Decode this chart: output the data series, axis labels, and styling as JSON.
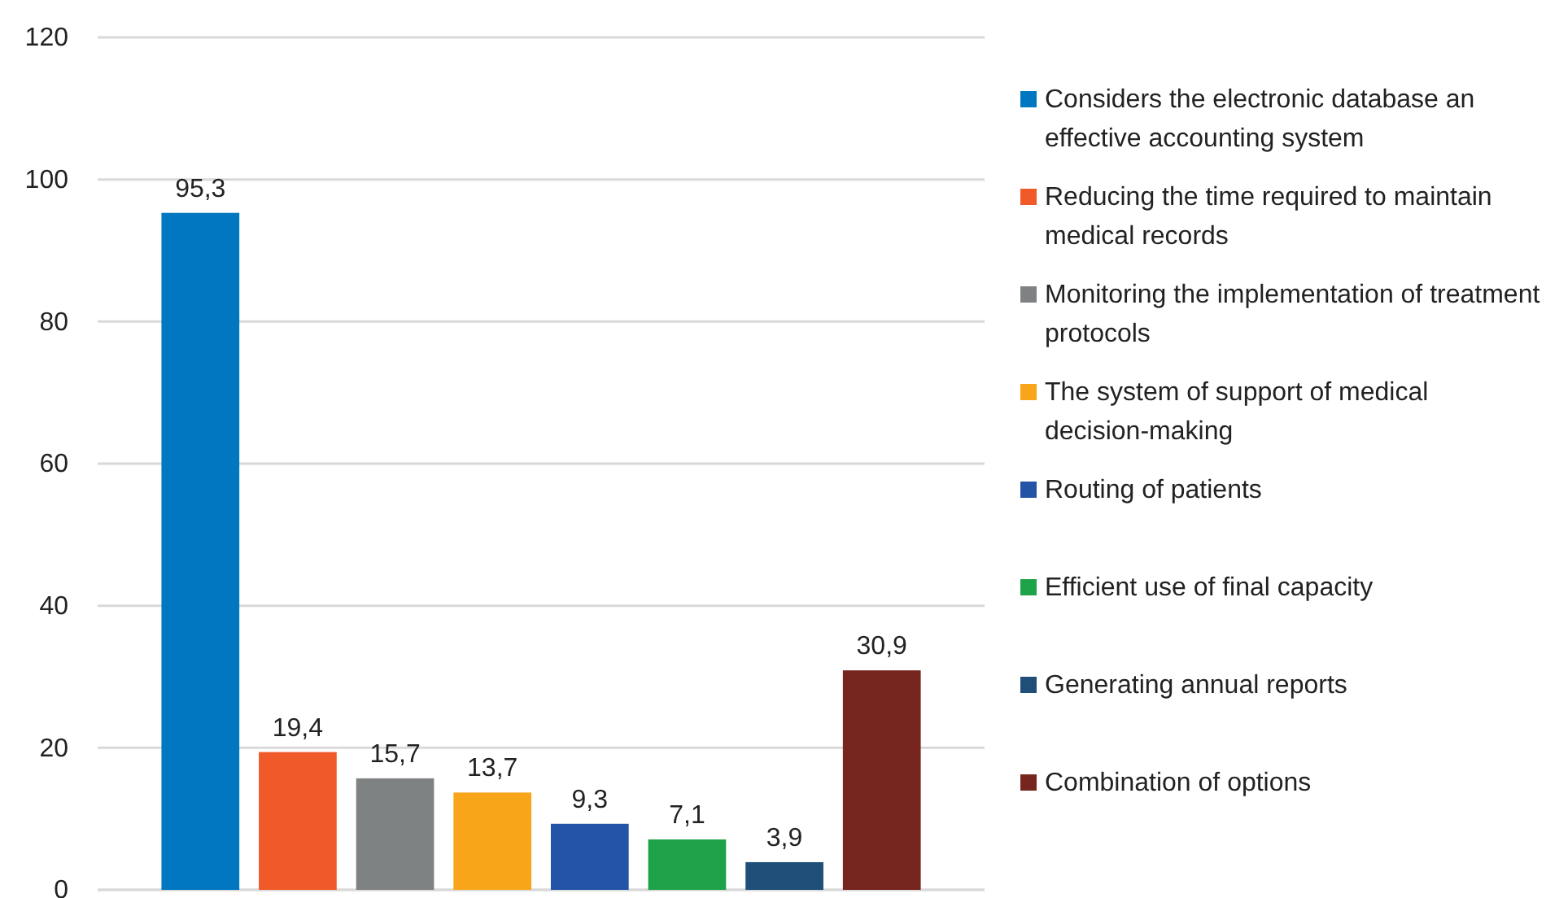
{
  "chart_data": {
    "type": "bar",
    "categories": [
      null
    ],
    "ylim": [
      0,
      120
    ],
    "yticks": [
      0,
      20,
      40,
      60,
      80,
      100,
      120
    ],
    "grid": "y",
    "legend": "right",
    "series": [
      {
        "name": "Considers the electronic database an effective accounting system",
        "color": "#0077c0",
        "values": [
          95.3
        ],
        "value_labels": [
          "95,3"
        ]
      },
      {
        "name": "Reducing the time required to maintain medical records",
        "color": "#f05a28",
        "values": [
          19.4
        ],
        "value_labels": [
          "19,4"
        ]
      },
      {
        "name": "Monitoring the implementation of treatment protocols",
        "color": "#7f8283",
        "values": [
          15.7
        ],
        "value_labels": [
          "15,7"
        ]
      },
      {
        "name": "The system of support of medical decision-making",
        "color": "#f9a51a",
        "values": [
          13.7
        ],
        "value_labels": [
          "13,7"
        ]
      },
      {
        "name": "Routing of patients",
        "color": "#2354a6",
        "values": [
          9.3
        ],
        "value_labels": [
          "9,3"
        ]
      },
      {
        "name": "Efficient use of final capacity",
        "color": "#1fa34a",
        "values": [
          7.1
        ],
        "value_labels": [
          "7,1"
        ]
      },
      {
        "name": "Generating annual reports",
        "color": "#1f4e79",
        "values": [
          3.9
        ],
        "value_labels": [
          "3,9"
        ]
      },
      {
        "name": "Combination of options",
        "color": "#76261e",
        "values": [
          30.9
        ],
        "value_labels": [
          "30,9"
        ]
      }
    ]
  }
}
